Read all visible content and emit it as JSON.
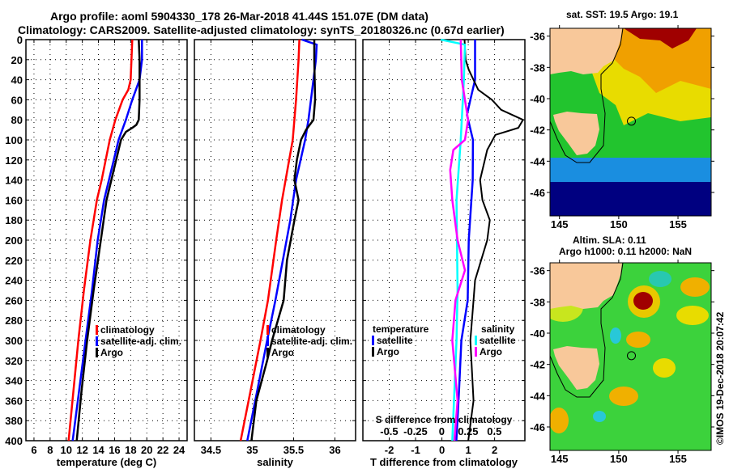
{
  "header": {
    "title_line1": "Argo profile: aoml 5904330_178 26-Mar-2018 41.44S 151.07E (DM data)",
    "title_line2": "Climatology: CARS2009. Satellite-adjusted climatology: synTS_20180326.nc (0.67d earlier)"
  },
  "colors": {
    "climatology": "#ff0000",
    "satellite": "#0000ff",
    "argo": "#000000",
    "salinity_satellite": "#00ffff",
    "salinity_argo": "#ff00ff",
    "land": "#f8c89a"
  },
  "chart_data": [
    {
      "type": "line",
      "id": "temperature",
      "xlabel": "temperature (deg C)",
      "ylabel": "",
      "xlim": [
        5.0,
        25.0
      ],
      "ylim": [
        400,
        0
      ],
      "xticks": [
        6,
        8,
        10,
        12,
        14,
        16,
        18,
        20,
        22,
        24
      ],
      "yticks": [
        0,
        20,
        40,
        60,
        80,
        100,
        120,
        140,
        160,
        180,
        200,
        220,
        240,
        260,
        280,
        300,
        320,
        340,
        360,
        380,
        400
      ],
      "grid": true,
      "legend": {
        "position": "lower-right",
        "entries": [
          "climatology",
          "satellite-adj. clim.",
          "Argo"
        ]
      },
      "series": [
        {
          "name": "climatology",
          "color_key": "climatology",
          "depth": [
            0,
            20,
            40,
            50,
            60,
            80,
            100,
            120,
            140,
            160,
            200,
            250,
            300,
            350,
            400
          ],
          "values": [
            18.2,
            18.1,
            18.0,
            17.7,
            17.0,
            16.1,
            15.4,
            14.9,
            14.4,
            13.8,
            13.0,
            12.2,
            11.5,
            10.9,
            10.3
          ]
        },
        {
          "name": "satellite-adj. clim.",
          "color_key": "satellite",
          "depth": [
            0,
            20,
            40,
            60,
            80,
            100,
            120,
            140,
            160,
            200,
            250,
            300,
            350,
            400
          ],
          "values": [
            19.4,
            19.4,
            19.1,
            18.2,
            17.4,
            16.5,
            15.9,
            15.3,
            14.7,
            13.9,
            13.2,
            12.4,
            11.6,
            10.8
          ]
        },
        {
          "name": "Argo",
          "color_key": "argo",
          "depth": [
            0,
            20,
            40,
            60,
            80,
            85,
            88,
            92,
            100,
            120,
            140,
            160,
            200,
            250,
            300,
            350,
            400
          ],
          "values": [
            19.0,
            19.1,
            19.1,
            19.1,
            19.0,
            18.7,
            18.2,
            17.4,
            16.8,
            16.2,
            15.6,
            15.0,
            14.3,
            13.4,
            12.6,
            11.9,
            11.3
          ]
        }
      ]
    },
    {
      "type": "line",
      "id": "salinity",
      "xlabel": "salinity",
      "xlim": [
        34.3,
        36.25
      ],
      "ylim": [
        400,
        0
      ],
      "xticks": [
        34.5,
        35,
        35.5,
        36
      ],
      "grid": true,
      "legend": {
        "position": "lower-right",
        "entries": [
          "climatology",
          "satellite-adj. clim.",
          "Argo"
        ]
      },
      "series": [
        {
          "name": "climatology",
          "color_key": "climatology",
          "depth": [
            0,
            20,
            60,
            100,
            160,
            200,
            260,
            300,
            350,
            400
          ],
          "values": [
            35.57,
            35.56,
            35.53,
            35.49,
            35.36,
            35.29,
            35.19,
            35.1,
            34.98,
            34.86
          ]
        },
        {
          "name": "satellite-adj. clim.",
          "color_key": "satellite",
          "depth": [
            0,
            5,
            20,
            60,
            80,
            100,
            140,
            180,
            260,
            300,
            350,
            400
          ],
          "values": [
            35.6,
            35.78,
            35.77,
            35.71,
            35.68,
            35.64,
            35.53,
            35.46,
            35.28,
            35.18,
            35.06,
            34.94
          ]
        },
        {
          "name": "Argo",
          "color_key": "argo",
          "depth": [
            0,
            20,
            60,
            80,
            90,
            100,
            120,
            140,
            160,
            180,
            220,
            260,
            300,
            320,
            360,
            400
          ],
          "values": [
            35.75,
            35.75,
            35.76,
            35.74,
            35.65,
            35.59,
            35.54,
            35.51,
            35.56,
            35.51,
            35.42,
            35.38,
            35.24,
            35.18,
            35.05,
            34.99
          ]
        }
      ]
    },
    {
      "type": "line",
      "id": "difference",
      "xlabel": "T difference from climatology",
      "xlabel2": "S difference from climatology",
      "xlim": [
        -3.0,
        3.15
      ],
      "xlim_salinity": [
        -0.75,
        0.79
      ],
      "ylim": [
        400,
        0
      ],
      "xticks": [
        -2,
        -1,
        0,
        1,
        2
      ],
      "xticks_salinity": [
        "-0.5",
        "-0.25",
        "0",
        "0.25",
        "0.5"
      ],
      "xticks_salinity_values": [
        -0.5,
        -0.25,
        0,
        0.25,
        0.5
      ],
      "grid": true,
      "legend": {
        "temperature_heading": "temperature",
        "salinity_heading": "salinity",
        "entries_temperature": [
          "satellite",
          "Argo"
        ],
        "entries_salinity": [
          "satellite",
          "Argo"
        ]
      },
      "series": [
        {
          "name": "T satellite",
          "kind": "T",
          "color_key": "satellite",
          "depth": [
            0,
            20,
            40,
            60,
            75,
            100,
            140,
            200,
            260,
            300,
            350,
            400
          ],
          "values": [
            1.26,
            1.26,
            1.26,
            1.08,
            0.95,
            1.18,
            1.17,
            1.02,
            0.98,
            0.74,
            0.65,
            0.55
          ]
        },
        {
          "name": "T Argo",
          "kind": "T",
          "color_key": "argo",
          "depth": [
            0,
            20,
            30,
            50,
            60,
            70,
            80,
            88,
            95,
            110,
            140,
            160,
            180,
            200,
            240,
            260,
            300,
            360,
            400
          ],
          "values": [
            0.86,
            0.9,
            1.02,
            1.38,
            1.9,
            2.25,
            3.08,
            2.9,
            2.03,
            1.72,
            1.45,
            1.54,
            1.82,
            1.72,
            1.26,
            1.2,
            1.08,
            1.2,
            1.0
          ]
        },
        {
          "name": "S satellite",
          "kind": "S",
          "color_key": "salinity_satellite",
          "depth": [
            0,
            5,
            40,
            100,
            160,
            250,
            300,
            400
          ],
          "values": [
            -0.01,
            0.22,
            0.21,
            0.18,
            0.14,
            0.15,
            0.14,
            0.1
          ]
        },
        {
          "name": "S Argo",
          "kind": "S",
          "color_key": "salinity_argo",
          "depth": [
            0,
            40,
            80,
            100,
            110,
            130,
            160,
            200,
            230,
            260,
            300,
            360,
            400
          ],
          "values": [
            0.18,
            0.19,
            0.25,
            0.22,
            0.11,
            0.08,
            0.1,
            0.15,
            0.22,
            0.13,
            0.1,
            0.15,
            0.12
          ]
        }
      ]
    },
    {
      "type": "heatmap",
      "id": "sst-map",
      "title": "sat. SST: 19.5 Argo: 19.1",
      "xticks": [
        145,
        150,
        155
      ],
      "yticks": [
        -36,
        -38,
        -40,
        -42,
        -44,
        -46
      ],
      "xlim": [
        144.2,
        157.8
      ],
      "ylim": [
        -47.5,
        -35.5
      ],
      "float_position": [
        151.07,
        -41.44
      ]
    },
    {
      "type": "heatmap",
      "id": "sla-map",
      "title_line1": "Altim. SLA: 0.11",
      "title_line2": "Argo h1000: 0.11 h2000: NaN",
      "xticks": [
        145,
        150,
        155
      ],
      "yticks": [
        -36,
        -38,
        -40,
        -42,
        -44,
        -46
      ],
      "xlim": [
        144.2,
        157.8
      ],
      "ylim": [
        -47.5,
        -35.5
      ],
      "float_position": [
        151.07,
        -41.44
      ]
    }
  ],
  "footer": {
    "credit": "©IMOS 19-Dec-2018 20:07:42"
  }
}
